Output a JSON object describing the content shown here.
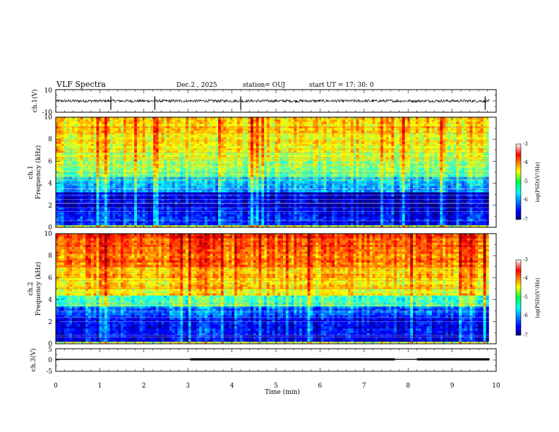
{
  "header": {
    "title": "VLF Spectra",
    "date": "Dec.2 , 2025",
    "station": "station= OUJ",
    "start": "start UT = 17: 30: 0"
  },
  "chart_data": [
    {
      "type": "line",
      "name": "ch1-waveform",
      "ylabel": "ch.1(V)",
      "xlim": [
        0,
        10
      ],
      "ylim": [
        -10,
        10
      ],
      "ytick_labels": [
        "10",
        "-10"
      ],
      "baseline_value": 0,
      "spike_times_min": [
        1.25,
        2.25,
        4.2,
        9.75
      ]
    },
    {
      "type": "heatmap",
      "name": "ch1-spectrogram",
      "ylabel_lines": [
        "ch.1",
        "Frequency (kHz)"
      ],
      "xlim": [
        0,
        10
      ],
      "ylim": [
        0,
        10
      ],
      "data_xlim": [
        0,
        9.83
      ],
      "ytick_labels": [
        "0",
        "2",
        "4",
        "6",
        "8",
        "10"
      ],
      "colorbar": {
        "label": "log(PSD)(V²/Hz)",
        "range": [
          -7,
          -3
        ],
        "tick_labels": [
          "-3",
          "-4",
          "-5",
          "-6",
          "-7"
        ]
      }
    },
    {
      "type": "heatmap",
      "name": "ch2-spectrogram",
      "ylabel_lines": [
        "ch.2",
        "Frequency (kHz)"
      ],
      "xlim": [
        0,
        10
      ],
      "ylim": [
        0,
        10
      ],
      "data_xlim": [
        0,
        9.83
      ],
      "ytick_labels": [
        "0",
        "2",
        "4",
        "6",
        "8",
        "10"
      ],
      "colorbar": {
        "label": "log(PSD)(V²/Hz)",
        "range": [
          -7,
          -3
        ],
        "tick_labels": [
          "-3",
          "-4",
          "-5",
          "-6",
          "-7"
        ]
      }
    },
    {
      "type": "line",
      "name": "ch3-signal",
      "ylabel": "ch.3(V)",
      "xlim": [
        0,
        10
      ],
      "ylim": [
        -5,
        5
      ],
      "ytick_labels": [
        "5",
        "0",
        "-5"
      ],
      "segments": [
        {
          "x0": 0,
          "x1": 3.05,
          "level": 0.3,
          "weight": "thin"
        },
        {
          "x0": 3.05,
          "x1": 7.7,
          "level": 0.3,
          "weight": "thick"
        },
        {
          "x0": 7.7,
          "x1": 8.2,
          "level": 0.3,
          "weight": "thin"
        },
        {
          "x0": 8.2,
          "x1": 9.85,
          "level": 0.3,
          "weight": "thick"
        }
      ]
    }
  ],
  "xaxis": {
    "xlabel": "Time (min)",
    "tick_labels": [
      "0",
      "1",
      "2",
      "3",
      "4",
      "5",
      "6",
      "7",
      "8",
      "9",
      "10"
    ]
  }
}
